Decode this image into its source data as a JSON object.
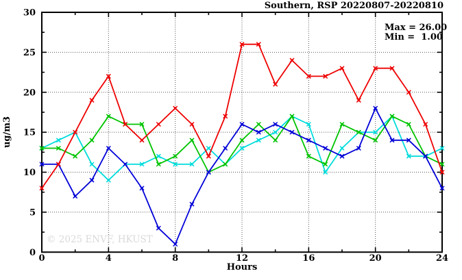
{
  "window": {
    "title": "Southern, RSP 20220807-20220810"
  },
  "chart_data": {
    "type": "line",
    "title": "Southern, RSP 20220807-20220810",
    "xlabel": "Hours",
    "ylabel": "ug/m3",
    "xlim": [
      0,
      24
    ],
    "ylim": [
      0,
      30
    ],
    "xticks": [
      0,
      4,
      8,
      12,
      16,
      20,
      24
    ],
    "yticks": [
      0,
      5,
      10,
      15,
      20,
      25,
      30
    ],
    "x_minor_step": 2,
    "y_minor_step": 2.5,
    "grid": true,
    "legend_position": "none",
    "annotations": {
      "max": "Max = 26.00",
      "min": "Min =  1.00"
    },
    "watermark": "© 2025 ENVF, HKUST",
    "x": [
      0,
      1,
      2,
      3,
      4,
      5,
      6,
      7,
      8,
      9,
      10,
      11,
      12,
      13,
      14,
      15,
      16,
      17,
      18,
      19,
      20,
      21,
      22,
      23,
      24
    ],
    "series": [
      {
        "name": "series-cyan",
        "color": "#00dcdc",
        "values": [
          13,
          14,
          15,
          11,
          9,
          11,
          11,
          12,
          11,
          11,
          13,
          11,
          13,
          14,
          15,
          17,
          16,
          10,
          13,
          15,
          15,
          17,
          12,
          12,
          13
        ]
      },
      {
        "name": "series-green",
        "color": "#00c400",
        "values": [
          13,
          13,
          12,
          14,
          17,
          16,
          16,
          11,
          12,
          14,
          10,
          11,
          14,
          16,
          14,
          17,
          12,
          11,
          16,
          15,
          14,
          17,
          16,
          12,
          11
        ]
      },
      {
        "name": "series-blue",
        "color": "#0000d8",
        "values": [
          11,
          11,
          7,
          9,
          13,
          11,
          8,
          3,
          1,
          6,
          10,
          13,
          16,
          15,
          16,
          15,
          14,
          13,
          12,
          13,
          18,
          14,
          14,
          12,
          8
        ]
      },
      {
        "name": "series-red",
        "color": "#ee0000",
        "values": [
          8,
          11,
          15,
          19,
          22,
          16,
          14,
          16,
          18,
          16,
          12,
          17,
          26,
          26,
          21,
          24,
          22,
          22,
          23,
          19,
          23,
          23,
          20,
          16,
          10
        ]
      }
    ],
    "colors": {
      "frame": "#000000",
      "grid": "#555555",
      "watermark": "#d9d9d9",
      "text": "#000000"
    }
  }
}
